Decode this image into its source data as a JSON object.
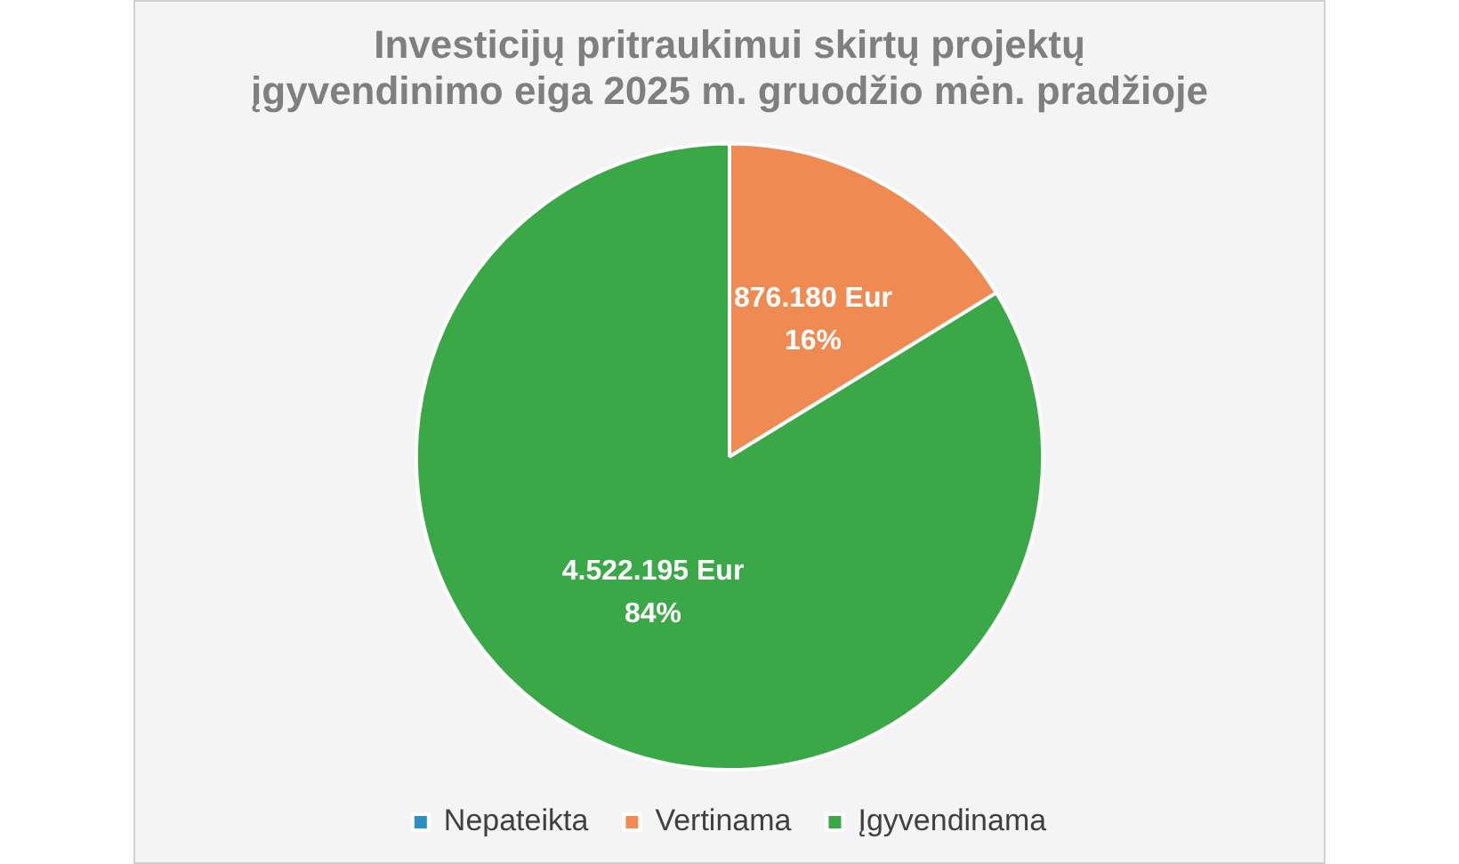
{
  "chart_data": {
    "type": "pie",
    "title": "Investicijų pritraukimui skirtų projektų\nįgyvendinimo eiga 2025 m. gruodžio mėn. pradžioje",
    "categories": [
      "Nepateikta",
      "Vertinama",
      "Įgyvendinama"
    ],
    "values": [
      0,
      876180,
      4522195
    ],
    "colors": [
      "#2b8fc4",
      "#ef8b52",
      "#3aa847"
    ],
    "value_labels": [
      null,
      "876.180 Eur\n16%",
      "4.522.195 Eur\n84%"
    ],
    "legend": "bottom"
  }
}
